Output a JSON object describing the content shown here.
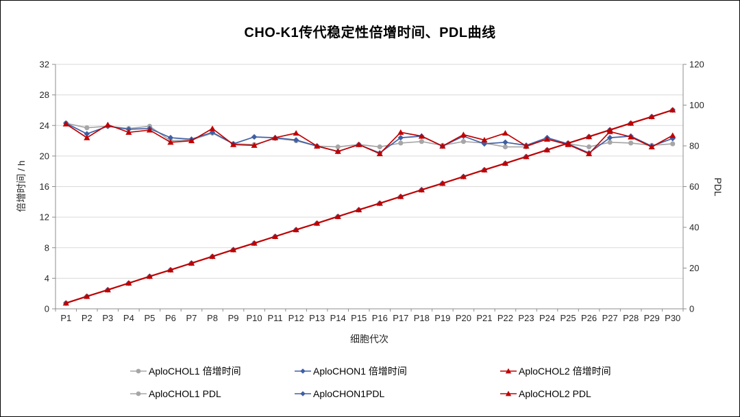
{
  "chart_data": {
    "type": "line",
    "title": "CHO-K1传代稳定性倍增时间、PDL曲线",
    "xlabel": "细胞代次",
    "ylabel_left": "倍增时间 / h",
    "ylabel_right": "PDL",
    "ylim_left": [
      0,
      32
    ],
    "ytick_step_left": 4,
    "ylim_right": [
      0,
      120
    ],
    "ytick_step_right": 20,
    "grid": "horizontal-only",
    "legend_position": "bottom",
    "colors": {
      "gray_series": "#a6a6a6",
      "blue_series": "#3e5fa4",
      "red_series": "#c00000",
      "gridline": "#d9d9d9",
      "axis": "#8c8c8c",
      "text": "#262626"
    },
    "categories": [
      "P1",
      "P2",
      "P3",
      "P4",
      "P5",
      "P6",
      "P7",
      "P8",
      "P9",
      "P10",
      "P11",
      "P12",
      "P13",
      "P14",
      "P15",
      "P16",
      "P17",
      "P18",
      "P19",
      "P20",
      "P21",
      "P22",
      "P23",
      "P24",
      "P25",
      "P26",
      "P27",
      "P28",
      "P29",
      "P30"
    ],
    "series": [
      {
        "name": "AploCHOL1 倍增时间",
        "axis": "left",
        "color": "#a6a6a6",
        "marker": "circle",
        "values": [
          24.3,
          23.7,
          23.9,
          23.6,
          23.9,
          22.0,
          22.1,
          23.0,
          21.6,
          21.5,
          22.3,
          22.0,
          21.3,
          21.2,
          21.5,
          21.2,
          21.7,
          21.9,
          21.4,
          21.9,
          21.7,
          21.2,
          21.2,
          22.3,
          21.6,
          21.2,
          21.8,
          21.7,
          21.4,
          21.6
        ]
      },
      {
        "name": "AploCHON1 倍增时间",
        "axis": "left",
        "color": "#3e5fa4",
        "marker": "diamond",
        "values": [
          24.3,
          22.9,
          23.9,
          23.5,
          23.6,
          22.4,
          22.2,
          23.1,
          21.6,
          22.5,
          22.4,
          22.1,
          21.3,
          20.6,
          21.5,
          20.4,
          22.4,
          22.6,
          21.3,
          22.6,
          21.6,
          21.8,
          21.4,
          22.4,
          21.6,
          20.4,
          22.4,
          22.6,
          21.3,
          22.3
        ]
      },
      {
        "name": "AploCHOL2 倍增时间",
        "axis": "left",
        "color": "#c00000",
        "marker": "triangle",
        "values": [
          24.2,
          22.4,
          24.1,
          23.1,
          23.4,
          21.8,
          22.0,
          23.6,
          21.5,
          21.4,
          22.4,
          23.0,
          21.3,
          20.6,
          21.5,
          20.3,
          23.1,
          22.6,
          21.3,
          22.8,
          22.1,
          23.0,
          21.3,
          22.2,
          21.5,
          20.3,
          23.2,
          22.5,
          21.2,
          22.7
        ]
      },
      {
        "name": "AploCHOL1 PDL",
        "axis": "right",
        "color": "#a6a6a6",
        "marker": "circle",
        "values": [
          2.8,
          6.1,
          9.3,
          12.6,
          15.9,
          19.1,
          22.4,
          25.7,
          29.0,
          32.2,
          35.5,
          38.8,
          42.0,
          45.3,
          48.6,
          51.8,
          55.1,
          58.4,
          61.6,
          64.9,
          68.2,
          71.4,
          74.7,
          78.0,
          81.3,
          84.5,
          87.8,
          91.1,
          94.3,
          97.6
        ]
      },
      {
        "name": "AploCHON1PDL",
        "axis": "right",
        "color": "#3e5fa4",
        "marker": "diamond",
        "values": [
          2.8,
          6.1,
          9.3,
          12.6,
          15.9,
          19.1,
          22.4,
          25.7,
          29.0,
          32.2,
          35.5,
          38.8,
          42.0,
          45.3,
          48.6,
          51.8,
          55.1,
          58.4,
          61.6,
          64.9,
          68.2,
          71.4,
          74.7,
          78.0,
          81.3,
          84.5,
          87.8,
          91.1,
          94.3,
          97.6
        ]
      },
      {
        "name": "AploCHOL2 PDL",
        "axis": "right",
        "color": "#c00000",
        "marker": "triangle",
        "values": [
          2.8,
          6.1,
          9.3,
          12.6,
          15.9,
          19.1,
          22.4,
          25.7,
          29.0,
          32.2,
          35.5,
          38.8,
          42.0,
          45.3,
          48.6,
          51.8,
          55.1,
          58.4,
          61.6,
          64.9,
          68.2,
          71.4,
          74.7,
          78.0,
          81.3,
          84.5,
          87.8,
          91.1,
          94.3,
          97.6
        ]
      }
    ],
    "note": "All three PDL series overlap on one straight rising line from ~2.8 at P1 to ~97.6 at P30."
  }
}
